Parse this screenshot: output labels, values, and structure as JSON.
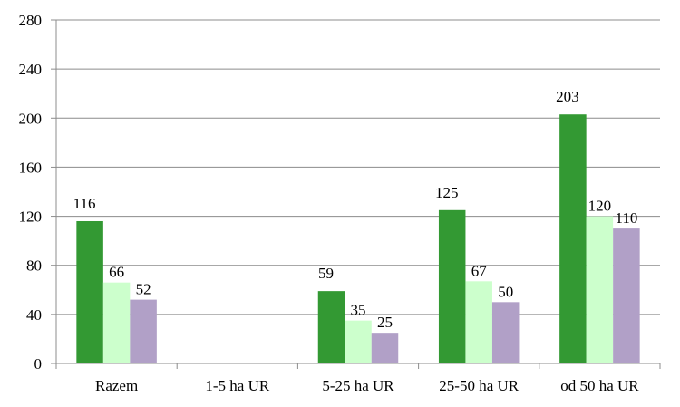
{
  "chart_data": {
    "type": "bar",
    "categories": [
      "Razem",
      "1-5 ha UR",
      "5-25 ha UR",
      "25-50 ha UR",
      "od 50 ha UR"
    ],
    "series": [
      {
        "color": "#339933",
        "values": [
          116,
          null,
          59,
          125,
          203
        ]
      },
      {
        "color": "#ccffcc",
        "values": [
          66,
          null,
          35,
          67,
          120
        ]
      },
      {
        "color": "#b1a0c7",
        "values": [
          52,
          null,
          25,
          50,
          110
        ]
      }
    ],
    "ylim": [
      0,
      280
    ],
    "yticks": [
      0,
      40,
      80,
      120,
      160,
      200,
      240,
      280
    ],
    "grid": true,
    "legend": "none",
    "title": "",
    "xlabel": "",
    "ylabel": ""
  }
}
